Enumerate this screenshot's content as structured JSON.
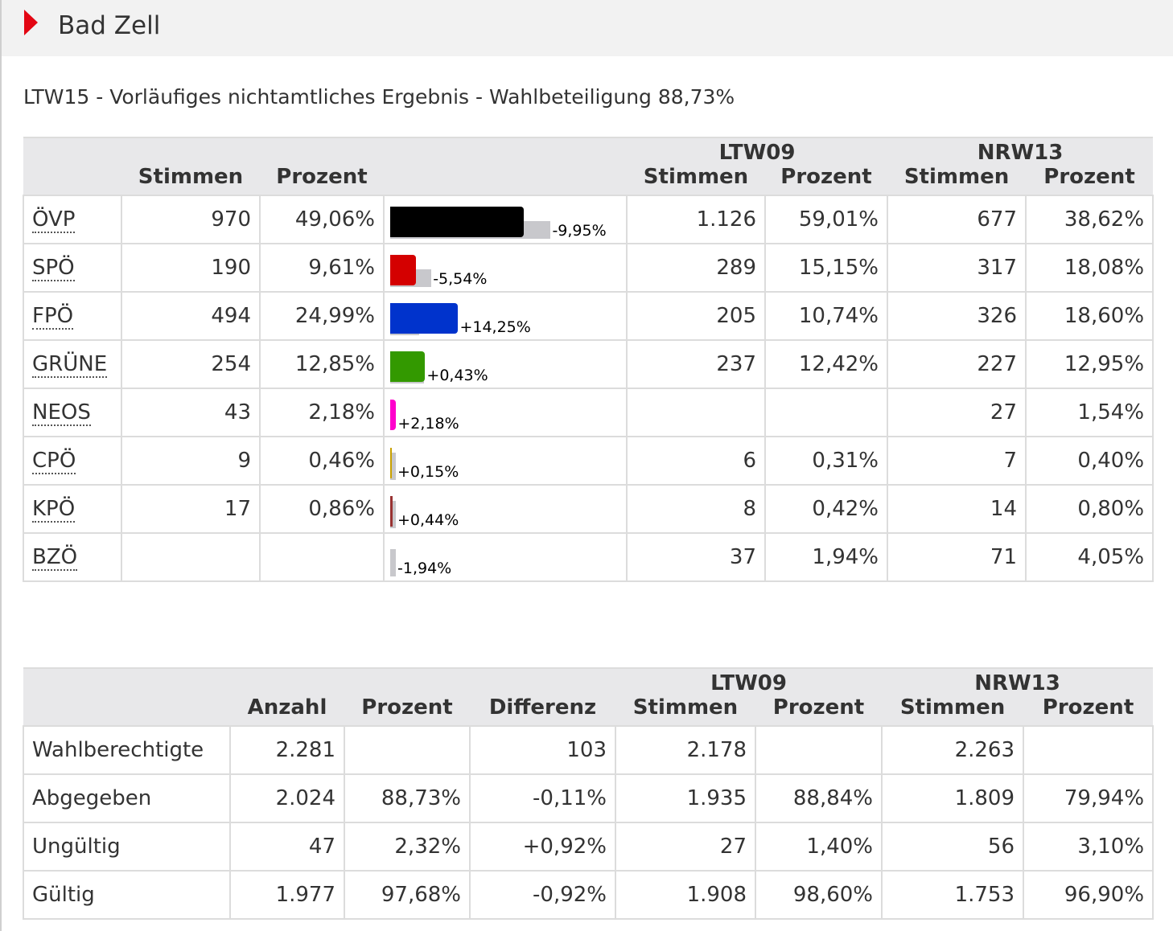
{
  "header": {
    "title": "Bad Zell"
  },
  "subtitle": "LTW15 - Vorläufiges nichtamtliches Ergebnis - Wahlbeteiligung 88,73%",
  "results": {
    "groups": {
      "ltw09": "LTW09",
      "nrw13": "NRW13"
    },
    "columns": {
      "stimmen": "Stimmen",
      "prozent": "Prozent"
    },
    "parties": [
      {
        "name": "ÖVP",
        "votes": "970",
        "pct": "49,06%",
        "diff": "-9,95%",
        "ltw09_votes": "1.126",
        "ltw09_pct": "59,01%",
        "nrw13_votes": "677",
        "nrw13_pct": "38,62%",
        "color": "#000000",
        "cur": 49.06,
        "prev": 59.01
      },
      {
        "name": "SPÖ",
        "votes": "190",
        "pct": "9,61%",
        "diff": "-5,54%",
        "ltw09_votes": "289",
        "ltw09_pct": "15,15%",
        "nrw13_votes": "317",
        "nrw13_pct": "18,08%",
        "color": "#d40000",
        "cur": 9.61,
        "prev": 15.15
      },
      {
        "name": "FPÖ",
        "votes": "494",
        "pct": "24,99%",
        "diff": "+14,25%",
        "ltw09_votes": "205",
        "ltw09_pct": "10,74%",
        "nrw13_votes": "326",
        "nrw13_pct": "18,60%",
        "color": "#0033cc",
        "cur": 24.99,
        "prev": 10.74
      },
      {
        "name": "GRÜNE",
        "votes": "254",
        "pct": "12,85%",
        "diff": "+0,43%",
        "ltw09_votes": "237",
        "ltw09_pct": "12,42%",
        "nrw13_votes": "227",
        "nrw13_pct": "12,95%",
        "color": "#339900",
        "cur": 12.85,
        "prev": 12.42
      },
      {
        "name": "NEOS",
        "votes": "43",
        "pct": "2,18%",
        "diff": "+2,18%",
        "ltw09_votes": "",
        "ltw09_pct": "",
        "nrw13_votes": "27",
        "nrw13_pct": "1,54%",
        "color": "#ff00cc",
        "cur": 2.18,
        "prev": 0
      },
      {
        "name": "CPÖ",
        "votes": "9",
        "pct": "0,46%",
        "diff": "+0,15%",
        "ltw09_votes": "6",
        "ltw09_pct": "0,31%",
        "nrw13_votes": "7",
        "nrw13_pct": "0,40%",
        "color": "#c8a000",
        "cur": 0.46,
        "prev": 0.31
      },
      {
        "name": "KPÖ",
        "votes": "17",
        "pct": "0,86%",
        "diff": "+0,44%",
        "ltw09_votes": "8",
        "ltw09_pct": "0,42%",
        "nrw13_votes": "14",
        "nrw13_pct": "0,80%",
        "color": "#993333",
        "cur": 0.86,
        "prev": 0.42
      },
      {
        "name": "BZÖ",
        "votes": "",
        "pct": "",
        "diff": "-1,94%",
        "ltw09_votes": "37",
        "ltw09_pct": "1,94%",
        "nrw13_votes": "71",
        "nrw13_pct": "4,05%",
        "color": "#ff8800",
        "cur": 0,
        "prev": 1.94
      }
    ]
  },
  "summary": {
    "groups": {
      "ltw09": "LTW09",
      "nrw13": "NRW13"
    },
    "columns": {
      "anzahl": "Anzahl",
      "prozent": "Prozent",
      "differenz": "Differenz",
      "stimmen": "Stimmen",
      "prozent2": "Prozent"
    },
    "rows": [
      {
        "label": "Wahlberechtigte",
        "anzahl": "2.281",
        "pct": "",
        "diff": "103",
        "ltw09_votes": "2.178",
        "ltw09_pct": "",
        "nrw13_votes": "2.263",
        "nrw13_pct": ""
      },
      {
        "label": "Abgegeben",
        "anzahl": "2.024",
        "pct": "88,73%",
        "diff": "-0,11%",
        "ltw09_votes": "1.935",
        "ltw09_pct": "88,84%",
        "nrw13_votes": "1.809",
        "nrw13_pct": "79,94%"
      },
      {
        "label": "Ungültig",
        "anzahl": "47",
        "pct": "2,32%",
        "diff": "+0,92%",
        "ltw09_votes": "27",
        "ltw09_pct": "1,40%",
        "nrw13_votes": "56",
        "nrw13_pct": "3,10%"
      },
      {
        "label": "Gültig",
        "anzahl": "1.977",
        "pct": "97,68%",
        "diff": "-0,92%",
        "ltw09_votes": "1.908",
        "ltw09_pct": "98,60%",
        "nrw13_votes": "1.753",
        "nrw13_pct": "96,90%"
      }
    ]
  }
}
